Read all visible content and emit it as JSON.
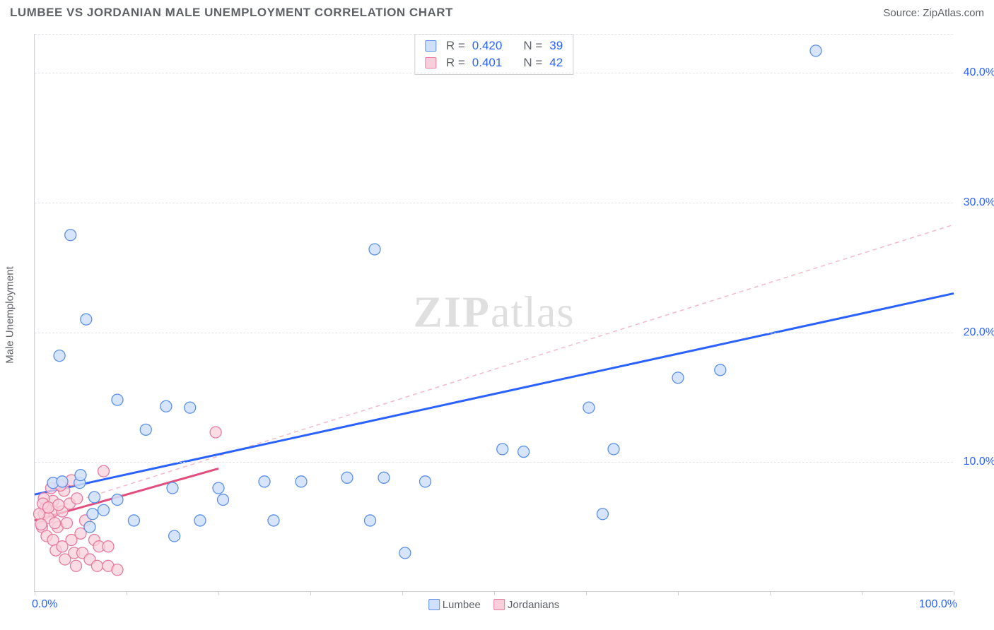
{
  "header": {
    "title": "LUMBEE VS JORDANIAN MALE UNEMPLOYMENT CORRELATION CHART",
    "source_label": "Source:",
    "source_name": "ZipAtlas.com"
  },
  "watermark": {
    "zip": "ZIP",
    "atlas": "atlas"
  },
  "axes": {
    "y_label": "Male Unemployment",
    "y_ticks": [
      {
        "value": 10.0,
        "label": "10.0%"
      },
      {
        "value": 20.0,
        "label": "20.0%"
      },
      {
        "value": 30.0,
        "label": "30.0%"
      },
      {
        "value": 40.0,
        "label": "40.0%"
      }
    ],
    "x_min_label": "0.0%",
    "x_max_label": "100.0%",
    "x_ticks": [
      0,
      10,
      20,
      30,
      40,
      50,
      60,
      70,
      80,
      90,
      100
    ],
    "xlim": [
      0,
      100
    ],
    "ylim": [
      0,
      43
    ],
    "grid_color": "#e2e4e7",
    "axis_color": "#ced0d3",
    "tick_label_color": "#2a62ff",
    "axis_label_color": "#5f6368",
    "background_color": "#ffffff"
  },
  "legend": {
    "series": [
      {
        "name": "Lumbee",
        "swatch_fill": "#cfe0fb",
        "swatch_border": "#5c8fe6"
      },
      {
        "name": "Jordanians",
        "swatch_fill": "#f8d0db",
        "swatch_border": "#e77aa0"
      }
    ]
  },
  "stats_box": {
    "rows": [
      {
        "swatch_fill": "#cfe0fb",
        "swatch_border": "#5c8fe6",
        "r_label": "R =",
        "r_value": "0.420",
        "n_label": "N =",
        "n_value": "39"
      },
      {
        "swatch_fill": "#f8d0db",
        "swatch_border": "#e77aa0",
        "r_label": "R =",
        "r_value": "0.401",
        "n_label": "N =",
        "n_value": "42"
      }
    ]
  },
  "series": {
    "lumbee": {
      "type": "scatter",
      "marker_fill": "#cfe0fb",
      "marker_stroke": "#5c8fe6",
      "marker_radius": 8,
      "marker_opacity": 0.85,
      "trend_solid": {
        "color": "#2a62ff",
        "width": 3,
        "x1": 0,
        "y1": 7.5,
        "x2": 100,
        "y2": 23.0
      },
      "trend_dashed": {
        "color": "#f4b8c8",
        "width": 1.5,
        "dash": "6,5",
        "x1": 0,
        "y1": 6.0,
        "x2": 100,
        "y2": 28.3
      },
      "points": [
        {
          "x": 85.0,
          "y": 41.7
        },
        {
          "x": 3.9,
          "y": 27.5
        },
        {
          "x": 37.0,
          "y": 26.4
        },
        {
          "x": 5.6,
          "y": 21.0
        },
        {
          "x": 2.7,
          "y": 18.2
        },
        {
          "x": 74.6,
          "y": 17.1
        },
        {
          "x": 9.0,
          "y": 14.8
        },
        {
          "x": 60.3,
          "y": 14.2
        },
        {
          "x": 14.3,
          "y": 14.3
        },
        {
          "x": 16.9,
          "y": 14.2
        },
        {
          "x": 12.1,
          "y": 12.5
        },
        {
          "x": 50.9,
          "y": 11.0
        },
        {
          "x": 53.2,
          "y": 10.8
        },
        {
          "x": 63.0,
          "y": 11.0
        },
        {
          "x": 70.0,
          "y": 16.5
        },
        {
          "x": 2.0,
          "y": 8.4
        },
        {
          "x": 3.0,
          "y": 8.5
        },
        {
          "x": 4.9,
          "y": 8.4
        },
        {
          "x": 5.0,
          "y": 9.0
        },
        {
          "x": 6.5,
          "y": 7.3
        },
        {
          "x": 9.0,
          "y": 7.1
        },
        {
          "x": 15.0,
          "y": 8.0
        },
        {
          "x": 20.0,
          "y": 8.0
        },
        {
          "x": 20.5,
          "y": 7.1
        },
        {
          "x": 6.0,
          "y": 5.0
        },
        {
          "x": 6.3,
          "y": 6.0
        },
        {
          "x": 7.5,
          "y": 6.3
        },
        {
          "x": 10.8,
          "y": 5.5
        },
        {
          "x": 15.2,
          "y": 4.3
        },
        {
          "x": 18.0,
          "y": 5.5
        },
        {
          "x": 26.0,
          "y": 5.5
        },
        {
          "x": 36.5,
          "y": 5.5
        },
        {
          "x": 40.3,
          "y": 3.0
        },
        {
          "x": 61.8,
          "y": 6.0
        },
        {
          "x": 25.0,
          "y": 8.5
        },
        {
          "x": 29.0,
          "y": 8.5
        },
        {
          "x": 34.0,
          "y": 8.8
        },
        {
          "x": 38.0,
          "y": 8.8
        },
        {
          "x": 42.5,
          "y": 8.5
        }
      ]
    },
    "jordanians": {
      "type": "scatter",
      "marker_fill": "#f8d0db",
      "marker_stroke": "#e77aa0",
      "marker_radius": 8,
      "marker_opacity": 0.75,
      "trend_solid": {
        "color": "#e34d7e",
        "width": 3,
        "x1": 0,
        "y1": 5.5,
        "x2": 20,
        "y2": 9.5
      },
      "points": [
        {
          "x": 19.7,
          "y": 12.3
        },
        {
          "x": 7.5,
          "y": 9.3
        },
        {
          "x": 4.0,
          "y": 8.6
        },
        {
          "x": 3.2,
          "y": 7.8
        },
        {
          "x": 2.0,
          "y": 7.0
        },
        {
          "x": 2.0,
          "y": 6.2
        },
        {
          "x": 1.0,
          "y": 6.0
        },
        {
          "x": 1.2,
          "y": 6.5
        },
        {
          "x": 1.5,
          "y": 5.7
        },
        {
          "x": 0.8,
          "y": 5.0
        },
        {
          "x": 2.5,
          "y": 5.0
        },
        {
          "x": 3.0,
          "y": 6.2
        },
        {
          "x": 3.5,
          "y": 5.3
        },
        {
          "x": 3.8,
          "y": 6.8
        },
        {
          "x": 4.0,
          "y": 4.0
        },
        {
          "x": 4.3,
          "y": 3.0
        },
        {
          "x": 4.5,
          "y": 2.0
        },
        {
          "x": 5.0,
          "y": 4.5
        },
        {
          "x": 5.2,
          "y": 3.0
        },
        {
          "x": 5.5,
          "y": 5.5
        },
        {
          "x": 6.0,
          "y": 2.5
        },
        {
          "x": 6.5,
          "y": 4.0
        },
        {
          "x": 6.8,
          "y": 2.0
        },
        {
          "x": 7.0,
          "y": 3.5
        },
        {
          "x": 8.0,
          "y": 3.5
        },
        {
          "x": 8.0,
          "y": 2.0
        },
        {
          "x": 9.0,
          "y": 1.7
        },
        {
          "x": 0.5,
          "y": 6.0
        },
        {
          "x": 0.7,
          "y": 5.2
        },
        {
          "x": 1.0,
          "y": 7.2
        },
        {
          "x": 1.3,
          "y": 4.3
        },
        {
          "x": 1.8,
          "y": 8.0
        },
        {
          "x": 2.0,
          "y": 4.0
        },
        {
          "x": 2.3,
          "y": 3.2
        },
        {
          "x": 2.8,
          "y": 8.2
        },
        {
          "x": 3.0,
          "y": 3.5
        },
        {
          "x": 3.3,
          "y": 2.5
        },
        {
          "x": 0.9,
          "y": 6.8
        },
        {
          "x": 1.5,
          "y": 6.5
        },
        {
          "x": 2.2,
          "y": 5.3
        },
        {
          "x": 2.6,
          "y": 6.7
        },
        {
          "x": 4.6,
          "y": 7.2
        }
      ]
    }
  }
}
